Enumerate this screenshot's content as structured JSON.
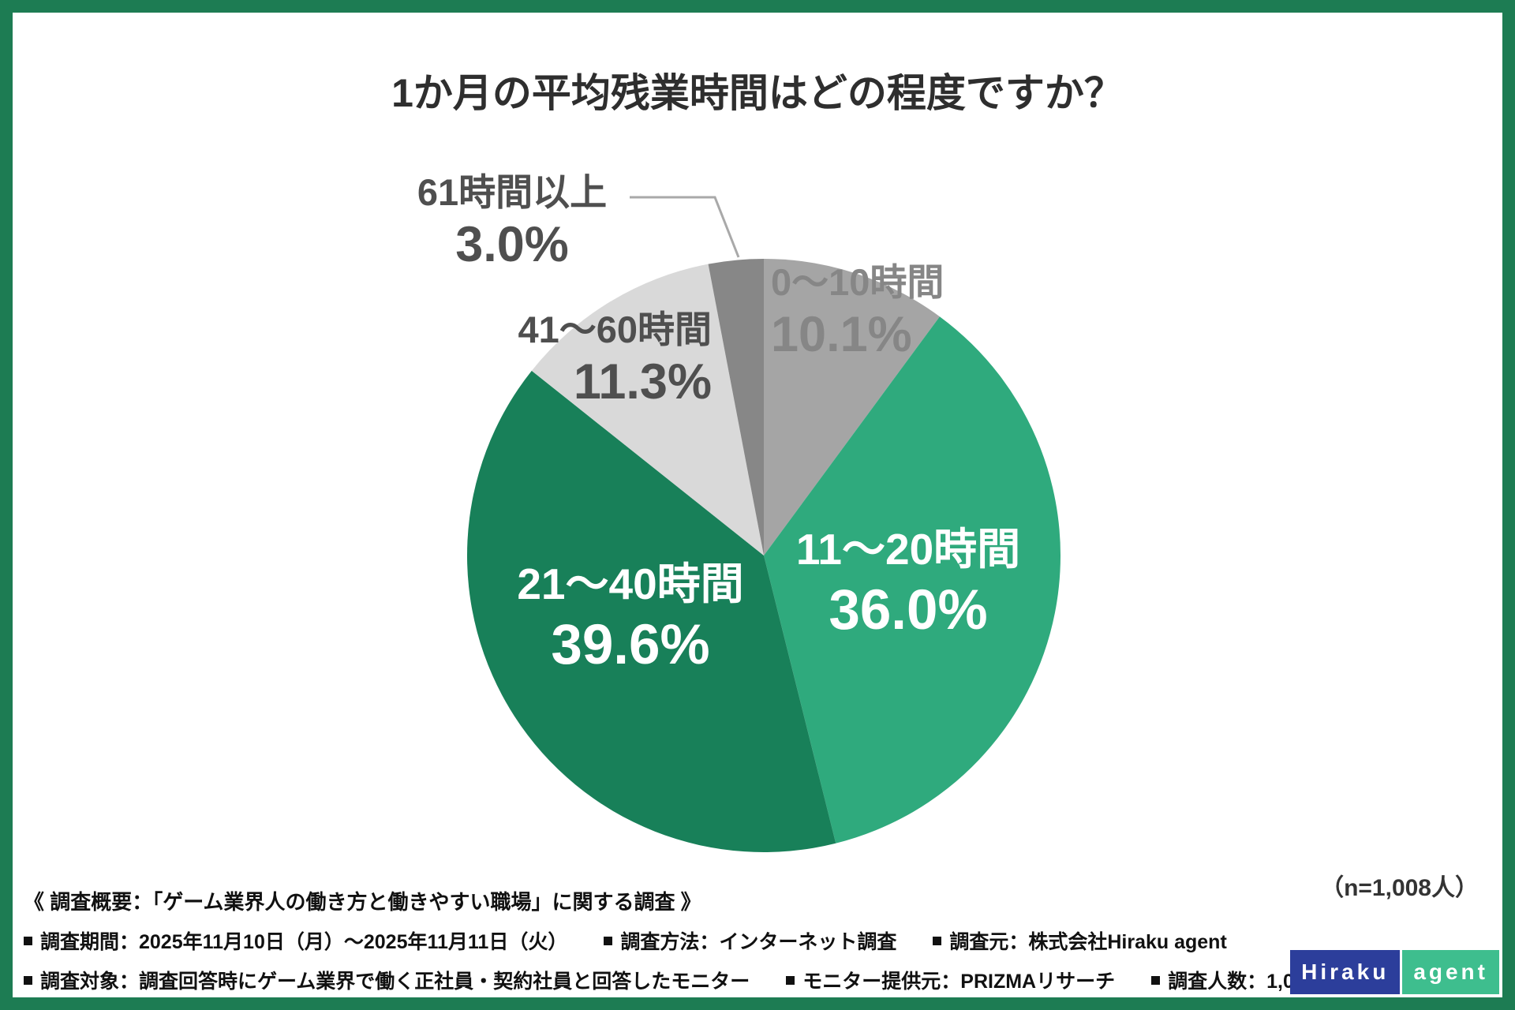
{
  "title": "1か月の平均残業時間はどの程度ですか？",
  "n_label": "（n=1,008人）",
  "chart_data": {
    "type": "pie",
    "title": "1か月の平均残業時間はどの程度ですか？",
    "sample_size_label": "（n=1,008人）",
    "start_angle_deg": 0,
    "direction": "clockwise",
    "unit": "%",
    "segments": [
      {
        "label": "0〜10時間",
        "value": 10.1,
        "display": "10.1%",
        "color": "#a5a5a5",
        "label_placement": "outside"
      },
      {
        "label": "11〜20時間",
        "value": 36.0,
        "display": "36.0%",
        "color": "#2faa7d",
        "label_placement": "inside"
      },
      {
        "label": "21〜40時間",
        "value": 39.6,
        "display": "39.6%",
        "color": "#188059",
        "label_placement": "inside"
      },
      {
        "label": "41〜60時間",
        "value": 11.3,
        "display": "11.3%",
        "color": "#d9d9d9",
        "label_placement": "outside"
      },
      {
        "label": "61時間以上",
        "value": 3.0,
        "display": "3.0%",
        "color": "#878787",
        "label_placement": "outside"
      }
    ]
  },
  "footer": {
    "overview": "《 調査概要：「ゲーム業界人の働き方と働きやすい職場」に関する調査 》",
    "line2_items": [
      "調査期間：2025年11月10日（月）〜2025年11月11日（火）",
      "調査方法：インターネット調査",
      "調査元：株式会社Hiraku agent"
    ],
    "line3_items": [
      "調査対象：調査回答時にゲーム業界で働く正社員・契約社員と回答したモニター",
      "モニター提供元：PRIZMAリサーチ",
      "調査人数：1,008人"
    ]
  },
  "logo": {
    "part1": "Hiraku",
    "part2": "agent",
    "part1_bg": "#2c3e9b",
    "part2_bg": "#3ebe8e"
  },
  "colors": {
    "frame": "#1d7c53",
    "leader_line": "#a9a9a9"
  }
}
